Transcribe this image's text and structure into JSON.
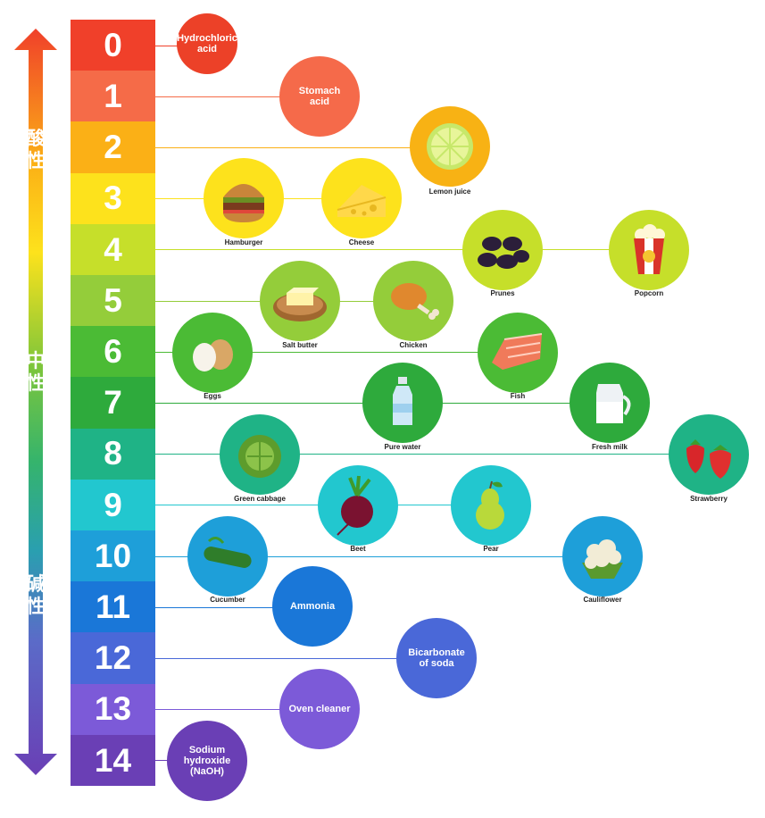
{
  "side_labels": {
    "acid": "酸性",
    "neutral": "中性",
    "alkaline": "碱性"
  },
  "scale": [
    {
      "value": "0",
      "color": "#f0402a"
    },
    {
      "value": "1",
      "color": "#f56b48"
    },
    {
      "value": "2",
      "color": "#fbb016"
    },
    {
      "value": "3",
      "color": "#fde21c"
    },
    {
      "value": "4",
      "color": "#c6df2a"
    },
    {
      "value": "5",
      "color": "#94cd3a"
    },
    {
      "value": "6",
      "color": "#4bbb35"
    },
    {
      "value": "7",
      "color": "#2eaa3c"
    },
    {
      "value": "8",
      "color": "#1fb386"
    },
    {
      "value": "9",
      "color": "#22c7cf"
    },
    {
      "value": "10",
      "color": "#1e9fd9"
    },
    {
      "value": "11",
      "color": "#1a77d8"
    },
    {
      "value": "12",
      "color": "#4a68d8"
    },
    {
      "value": "13",
      "color": "#7c5ad8"
    },
    {
      "value": "14",
      "color": "#6a3fb5"
    }
  ],
  "substances": [
    {
      "ph": 0,
      "label": "Hydrochloric acid",
      "type": "chemical",
      "color": "#ec4128"
    },
    {
      "ph": 1,
      "label": "Stomach acid",
      "type": "chemical",
      "color": "#f56a4a"
    },
    {
      "ph": 2,
      "label": "Lemon juice",
      "type": "food",
      "icon": "lemon-icon",
      "color": "#f8b214"
    },
    {
      "ph": 3,
      "label": "Hamburger",
      "type": "food",
      "icon": "hamburger-icon",
      "color": "#fde21c"
    },
    {
      "ph": 3,
      "label": "Cheese",
      "type": "food",
      "icon": "cheese-icon",
      "color": "#fde21c"
    },
    {
      "ph": 4,
      "label": "Prunes",
      "type": "food",
      "icon": "prunes-icon",
      "color": "#c6df2a"
    },
    {
      "ph": 4,
      "label": "Popcorn",
      "type": "food",
      "icon": "popcorn-icon",
      "color": "#c6df2a"
    },
    {
      "ph": 5,
      "label": "Salt butter",
      "type": "food",
      "icon": "butter-icon",
      "color": "#94cd3a"
    },
    {
      "ph": 5,
      "label": "Chicken",
      "type": "food",
      "icon": "chicken-icon",
      "color": "#94cd3a"
    },
    {
      "ph": 6,
      "label": "Eggs",
      "type": "food",
      "icon": "eggs-icon",
      "color": "#4bbb35"
    },
    {
      "ph": 6,
      "label": "Fish",
      "type": "food",
      "icon": "fish-icon",
      "color": "#4bbb35"
    },
    {
      "ph": 7,
      "label": "Pure water",
      "type": "food",
      "icon": "water-bottle-icon",
      "color": "#2eaa3c"
    },
    {
      "ph": 7,
      "label": "Fresh milk",
      "type": "food",
      "icon": "milk-jug-icon",
      "color": "#2eaa3c"
    },
    {
      "ph": 8,
      "label": "Green cabbage",
      "type": "food",
      "icon": "cabbage-icon",
      "color": "#1fb386"
    },
    {
      "ph": 8,
      "label": "Strawberry",
      "type": "food",
      "icon": "strawberry-icon",
      "color": "#1fb386"
    },
    {
      "ph": 9,
      "label": "Beet",
      "type": "food",
      "icon": "beet-icon",
      "color": "#22c7cf"
    },
    {
      "ph": 9,
      "label": "Pear",
      "type": "food",
      "icon": "pear-icon",
      "color": "#22c7cf"
    },
    {
      "ph": 10,
      "label": "Cucumber",
      "type": "food",
      "icon": "cucumber-icon",
      "color": "#1e9fd9"
    },
    {
      "ph": 10,
      "label": "Cauliflower",
      "type": "food",
      "icon": "cauliflower-icon",
      "color": "#1e9fd9"
    },
    {
      "ph": 11,
      "label": "Ammonia",
      "type": "chemical",
      "color": "#1a77d8"
    },
    {
      "ph": 12,
      "label": "Bicarbonate of soda",
      "type": "chemical",
      "color": "#4a68d8"
    },
    {
      "ph": 13,
      "label": "Oven cleaner",
      "type": "chemical",
      "color": "#7c5ad8"
    },
    {
      "ph": 14,
      "label": "Sodium hydroxide (NaOH)",
      "type": "chemical",
      "color": "#6a3fb5"
    }
  ]
}
